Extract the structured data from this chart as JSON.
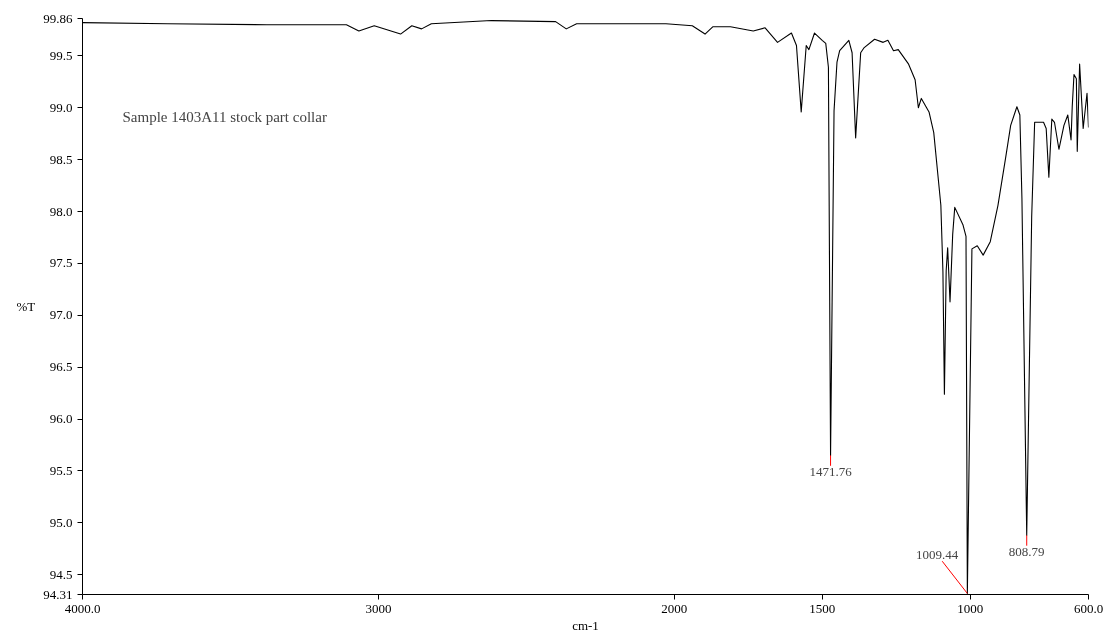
{
  "chart_data": {
    "type": "line",
    "xlabel": "cm-1",
    "ylabel": "%T",
    "xlim": [
      4000,
      600
    ],
    "ylim": [
      94.31,
      99.86
    ],
    "xticks": [
      {
        "value": 4000,
        "label": "4000.0"
      },
      3000,
      2000,
      1500,
      1000,
      {
        "value": 600,
        "label": "600.0"
      }
    ],
    "yticks": [
      {
        "value": 94.31,
        "label": "94.31"
      },
      {
        "value": 94.5,
        "label": "94.5"
      },
      {
        "value": 95.0,
        "label": "95.0"
      },
      {
        "value": 95.5,
        "label": "95.5"
      },
      {
        "value": 96.0,
        "label": "96.0"
      },
      {
        "value": 96.5,
        "label": "96.5"
      },
      {
        "value": 97.0,
        "label": "97.0"
      },
      {
        "value": 97.5,
        "label": "97.5"
      },
      {
        "value": 98.0,
        "label": "98.0"
      },
      {
        "value": 98.5,
        "label": "98.5"
      },
      {
        "value": 99.0,
        "label": "99.0"
      },
      {
        "value": 99.5,
        "label": "99.5"
      },
      {
        "value": 99.86,
        "label": "99.86"
      }
    ],
    "grid": false,
    "marker": "none",
    "line_style": "solid",
    "series": [
      {
        "color": "#000000",
        "x": [
          4000,
          3712,
          3377,
          3108,
          3066,
          3014,
          2925,
          2887,
          2854,
          2821,
          2618,
          2401,
          2365,
          2330,
          2028,
          1939,
          1896,
          1870,
          1810,
          1733,
          1693,
          1651,
          1604,
          1587,
          1571,
          1554,
          1545,
          1526,
          1500,
          1488,
          1479,
          1471.76,
          1460,
          1450,
          1441,
          1410,
          1399,
          1387,
          1370,
          1358,
          1323,
          1294,
          1278,
          1259,
          1243,
          1208,
          1186,
          1175,
          1165,
          1139,
          1123,
          1111,
          1099,
          1092,
          1087,
          1081,
          1076,
          1068,
          1059,
          1052,
          1024,
          1014,
          1009.44,
          994,
          976,
          956,
          932,
          906,
          880,
          863,
          842,
          832,
          825,
          808.79,
          792,
          782,
          752,
          743,
          734,
          724,
          715,
          700,
          683,
          670,
          659,
          655,
          649,
          641,
          638,
          630,
          618,
          605,
          600
        ],
        "values": [
          99.82,
          99.81,
          99.8,
          99.8,
          99.74,
          99.79,
          99.71,
          99.79,
          99.76,
          99.81,
          99.84,
          99.83,
          99.76,
          99.81,
          99.81,
          99.79,
          99.71,
          99.78,
          99.78,
          99.74,
          99.77,
          99.63,
          99.72,
          99.6,
          98.96,
          99.6,
          99.56,
          99.72,
          99.65,
          99.62,
          99.39,
          95.65,
          98.97,
          99.44,
          99.55,
          99.65,
          99.53,
          98.71,
          99.53,
          99.58,
          99.66,
          99.63,
          99.65,
          99.55,
          99.56,
          99.42,
          99.27,
          99.0,
          99.09,
          98.96,
          98.76,
          98.41,
          98.06,
          97.42,
          96.24,
          97.43,
          97.65,
          97.13,
          97.78,
          98.04,
          97.87,
          97.76,
          94.32,
          97.64,
          97.67,
          97.58,
          97.71,
          98.06,
          98.52,
          98.83,
          99.01,
          98.93,
          98.13,
          94.88,
          97.95,
          98.86,
          98.86,
          98.8,
          98.33,
          98.89,
          98.86,
          98.6,
          98.83,
          98.93,
          98.69,
          99.01,
          99.32,
          99.28,
          98.58,
          99.42,
          98.8,
          99.14,
          98.81
        ]
      }
    ],
    "annotations": [
      "Sample 1403A11 stock part collar",
      {
        "text": "1471.76",
        "x": 1471.76,
        "y": 95.65
      },
      {
        "text": "1009.44",
        "x": 1009.44,
        "y": 94.32
      },
      {
        "text": "808.79",
        "x": 808.79,
        "y": 94.88
      }
    ]
  }
}
